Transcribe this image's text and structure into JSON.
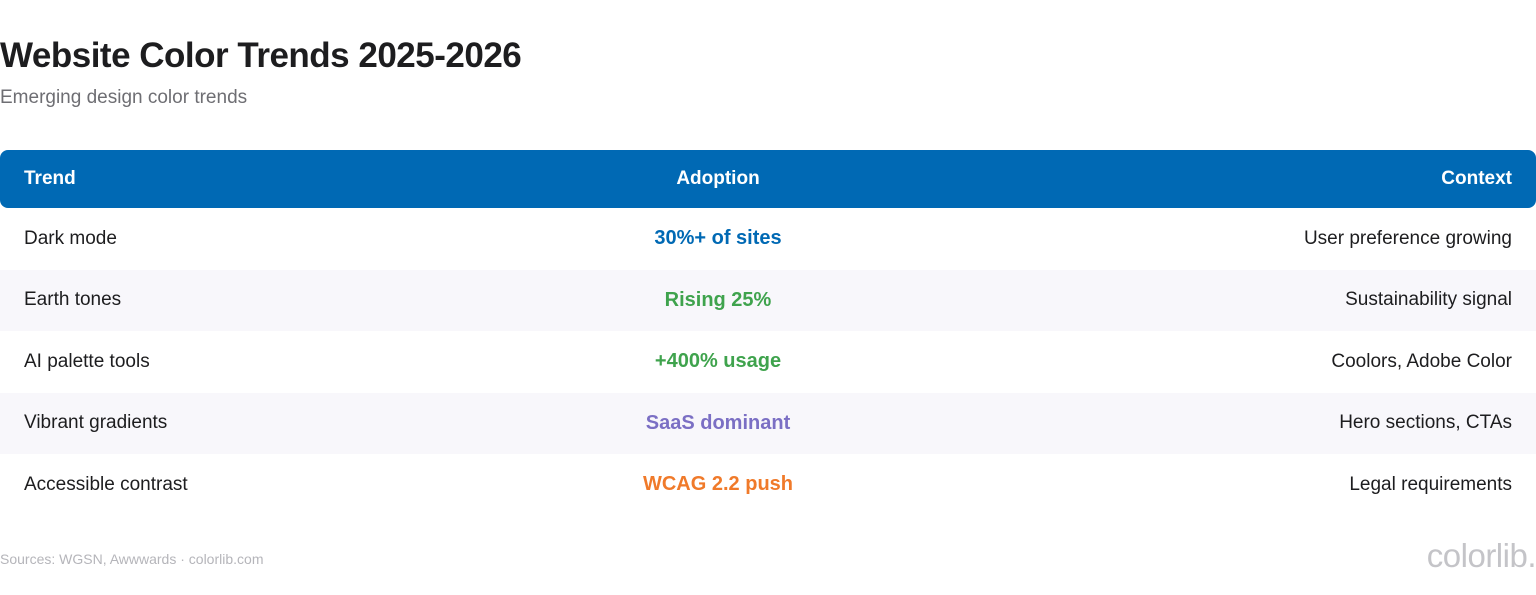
{
  "header": {
    "title": "Website Color Trends 2025-2026",
    "subtitle": "Emerging design color trends"
  },
  "table": {
    "columns": [
      "Trend",
      "Adoption",
      "Context"
    ],
    "rows": [
      {
        "trend": "Dark mode",
        "adoption": "30%+ of sites",
        "adoption_color": "#0069b4",
        "context": "User preference growing"
      },
      {
        "trend": "Earth tones",
        "adoption": "Rising 25%",
        "adoption_color": "#3fa34d",
        "context": "Sustainability signal"
      },
      {
        "trend": "AI palette tools",
        "adoption": "+400% usage",
        "adoption_color": "#3fa34d",
        "context": "Coolors, Adobe Color"
      },
      {
        "trend": "Vibrant gradients",
        "adoption": "SaaS dominant",
        "adoption_color": "#7b6fc4",
        "context": "Hero sections, CTAs"
      },
      {
        "trend": "Accessible contrast",
        "adoption": "WCAG 2.2 push",
        "adoption_color": "#f07a2a",
        "context": "Legal requirements"
      }
    ],
    "header_color": "#0069b4"
  },
  "footer": {
    "sources": "Sources: WGSN, Awwwards · colorlib.com",
    "logo_text": "colorlib."
  }
}
